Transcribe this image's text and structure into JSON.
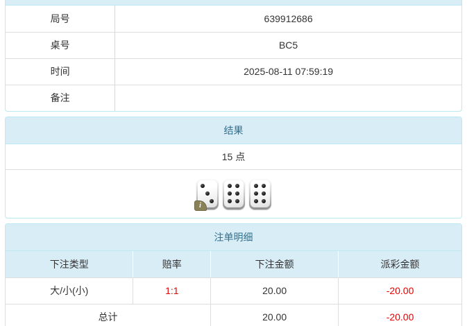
{
  "info_panel": {
    "rows": [
      {
        "label": "局号",
        "value": "639912686"
      },
      {
        "label": "桌号",
        "value": "BC5"
      },
      {
        "label": "时间",
        "value": "2025-08-11 07:59:19"
      },
      {
        "label": "备注",
        "value": ""
      }
    ]
  },
  "result_panel": {
    "title": "结果",
    "points": "15 点",
    "dice": [
      3,
      6,
      6
    ],
    "info_badge": "i"
  },
  "bets_panel": {
    "title": "注单明细",
    "columns": [
      "下注类型",
      "赔率",
      "下注金额",
      "派彩金额"
    ],
    "rows": [
      {
        "type": "大/小(小)",
        "odds": "1:1",
        "bet_amount": "20.00",
        "payout": "-20.00"
      }
    ],
    "total_label": "总计",
    "total_bet": "20.00",
    "total_payout": "-20.00"
  },
  "colors": {
    "panel_header_bg": "#d9edf7",
    "panel_border": "#bce8f1",
    "panel_title_text": "#31708f",
    "negative_text": "#e60000",
    "body_text": "#333333",
    "divider": "#dddddd"
  }
}
